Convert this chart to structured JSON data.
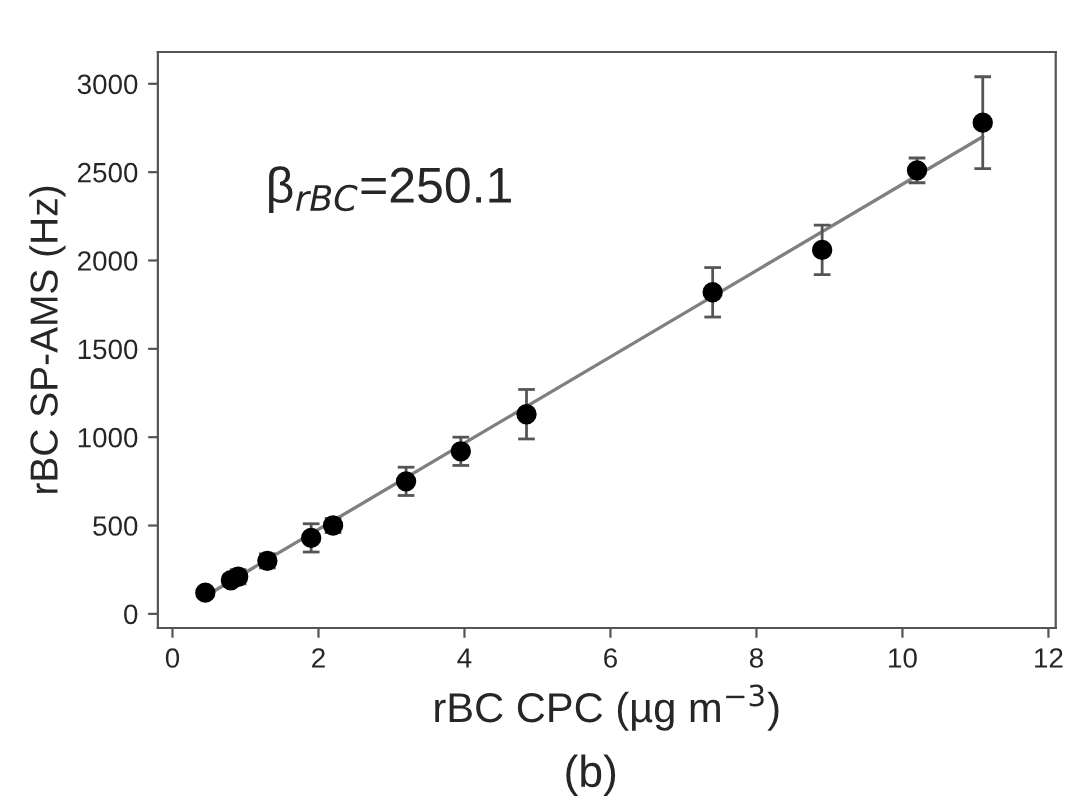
{
  "chart_data": {
    "type": "scatter",
    "xlabel": "rBC CPC (µg m$^{−3}$)",
    "ylabel": "rBC SP-AMS (Hz)",
    "series": [
      {
        "color": "#000000",
        "marker": "circle",
        "x": [
          0.45,
          0.8,
          0.9,
          1.3,
          1.9,
          2.2,
          3.2,
          3.95,
          4.85,
          7.4,
          8.9,
          10.2,
          11.1
        ],
        "values": [
          120,
          190,
          210,
          300,
          430,
          500,
          750,
          920,
          1130,
          1820,
          2060,
          2510,
          2780
        ],
        "errors": [
          20,
          30,
          40,
          40,
          80,
          40,
          80,
          80,
          140,
          140,
          140,
          70,
          260
        ]
      },
      {
        "type": "line",
        "color": "#808080",
        "marker": "none",
        "line_style": "solid",
        "x": [
          0.45,
          11.1
        ],
        "values": [
          100,
          2700
        ]
      }
    ],
    "xlim": [
      -0.2,
      12.1
    ],
    "ylim": [
      -80,
      3180
    ],
    "xticks": [
      0,
      2,
      4,
      6,
      8,
      10,
      12
    ],
    "yticks": [
      0,
      500,
      1000,
      1500,
      2000,
      2500,
      3000
    ],
    "grid": false,
    "legend": false,
    "annotations": [
      "β$_{rBC}$=250.1",
      "(b)"
    ]
  }
}
